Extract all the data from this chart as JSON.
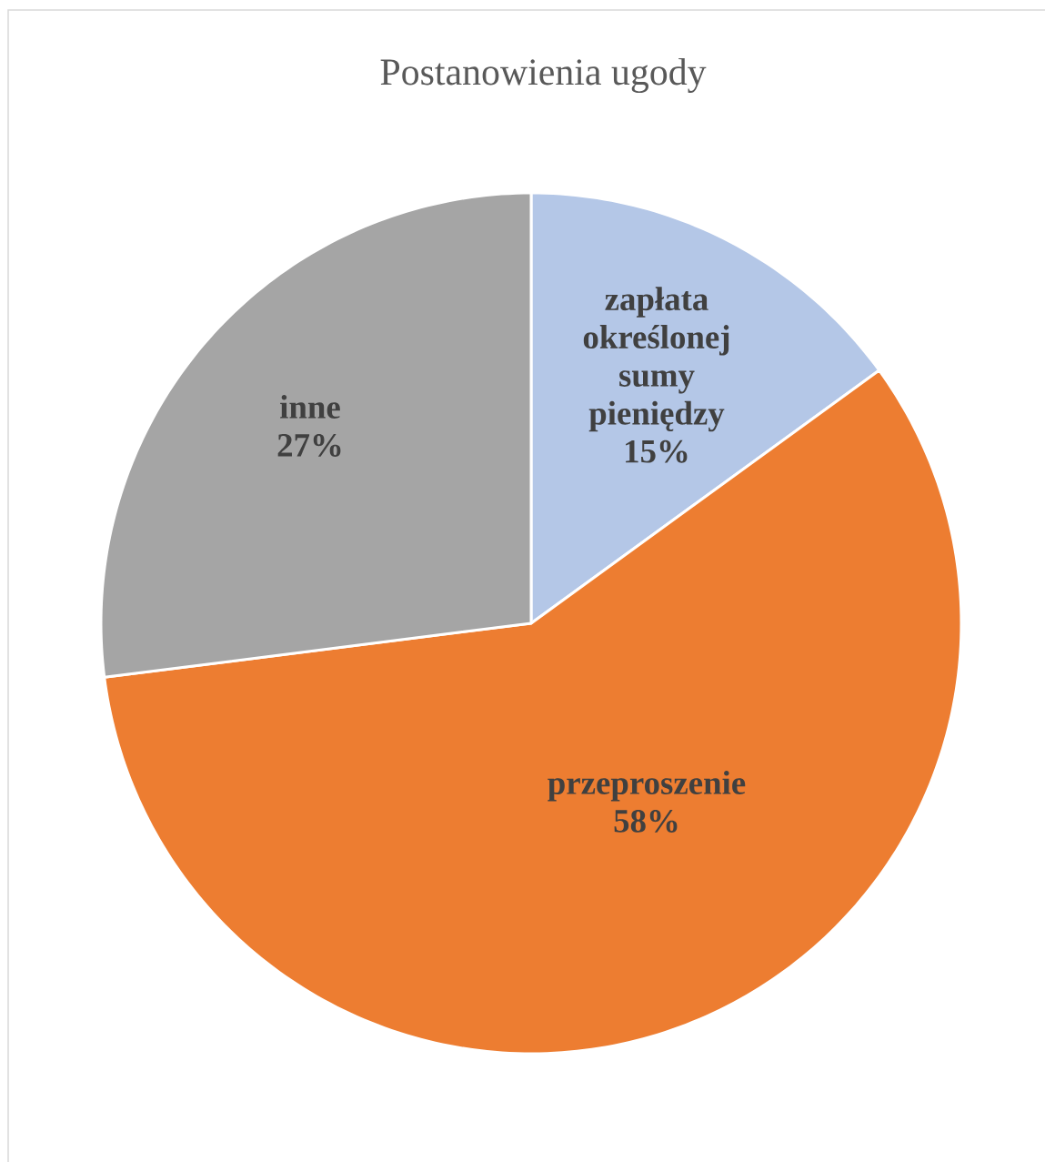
{
  "chart_data": {
    "type": "pie",
    "title": "Postanowienia ugody",
    "categories": [
      "zapłata określonej sumy pieniędzy",
      "przeproszenie",
      "inne"
    ],
    "values": [
      15,
      58,
      27
    ],
    "colors": [
      "#b4c7e7",
      "#ed7d31",
      "#a5a5a5"
    ],
    "value_labels": [
      "15%",
      "58%",
      "27%"
    ]
  }
}
